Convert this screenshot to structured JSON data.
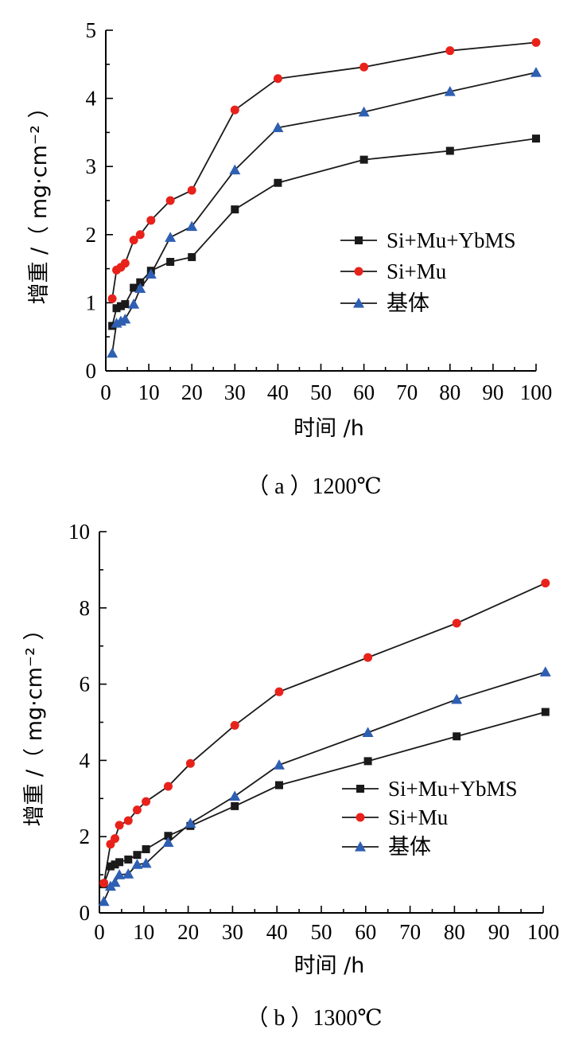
{
  "chart_data": [
    {
      "type": "line",
      "caption": "（ a ）1200℃",
      "xlabel": "时间 /h",
      "ylabel": "增重 /（ mg·cm⁻² ）",
      "xlim": [
        0,
        100
      ],
      "ylim": [
        0,
        5
      ],
      "xticks": [
        0,
        10,
        20,
        30,
        40,
        50,
        60,
        70,
        80,
        90,
        100
      ],
      "yticks": [
        0,
        1,
        2,
        3,
        4,
        5
      ],
      "grid": false,
      "legend_position": "center-right",
      "series": [
        {
          "name": "Si+Mu+YbMS",
          "marker": "square",
          "color": "#1a1a1a",
          "x": [
            1.5,
            2.5,
            3.5,
            4.5,
            6.5,
            8,
            10.5,
            15,
            20,
            30,
            40,
            60,
            80,
            100
          ],
          "y": [
            0.66,
            0.92,
            0.95,
            0.98,
            1.22,
            1.3,
            1.47,
            1.6,
            1.67,
            2.37,
            2.76,
            3.1,
            3.23,
            3.41
          ]
        },
        {
          "name": "Si+Mu",
          "marker": "circle",
          "color": "#e8221b",
          "x": [
            1.5,
            2.5,
            3.5,
            4.5,
            6.5,
            8,
            10.5,
            15,
            20,
            30,
            40,
            60,
            80,
            100
          ],
          "y": [
            1.06,
            1.48,
            1.52,
            1.58,
            1.92,
            2.0,
            2.21,
            2.5,
            2.65,
            3.83,
            4.29,
            4.46,
            4.7,
            4.82
          ]
        },
        {
          "name": "基体",
          "marker": "triangle",
          "color": "#2e5fb2",
          "x": [
            1.5,
            2.5,
            3.5,
            4.5,
            6.5,
            8,
            10.5,
            15,
            20,
            30,
            40,
            60,
            80,
            100
          ],
          "y": [
            0.26,
            0.7,
            0.73,
            0.76,
            0.98,
            1.21,
            1.42,
            1.96,
            2.12,
            2.95,
            3.57,
            3.8,
            4.1,
            4.38
          ]
        }
      ]
    },
    {
      "type": "line",
      "caption": "（ b ）1300℃",
      "xlabel": "时间 /h",
      "ylabel": "增重 /（ mg·cm⁻² ）",
      "xlim": [
        0,
        100
      ],
      "ylim": [
        0,
        10
      ],
      "xticks": [
        0,
        10,
        20,
        30,
        40,
        50,
        60,
        70,
        80,
        90,
        100
      ],
      "yticks": [
        0,
        2,
        4,
        6,
        8,
        10
      ],
      "grid": false,
      "legend_position": "center-right",
      "series": [
        {
          "name": "Si+Mu+YbMS",
          "marker": "square",
          "color": "#1a1a1a",
          "x": [
            1,
            2.5,
            3.5,
            4.5,
            6.5,
            8.5,
            10.5,
            15.5,
            20.5,
            30.5,
            40.5,
            60.5,
            80.5,
            100.5
          ],
          "y": [
            0.75,
            1.22,
            1.27,
            1.33,
            1.4,
            1.52,
            1.67,
            2.02,
            2.28,
            2.8,
            3.35,
            3.98,
            4.63,
            5.27
          ]
        },
        {
          "name": "Si+Mu",
          "marker": "circle",
          "color": "#e8221b",
          "x": [
            1,
            2.5,
            3.5,
            4.5,
            6.5,
            8.5,
            10.5,
            15.5,
            20.5,
            30.5,
            40.5,
            60.5,
            80.5,
            100.5
          ],
          "y": [
            0.78,
            1.8,
            1.95,
            2.3,
            2.42,
            2.7,
            2.92,
            3.32,
            3.92,
            4.92,
            5.8,
            6.7,
            7.6,
            8.65
          ]
        },
        {
          "name": "基体",
          "marker": "triangle",
          "color": "#2e5fb2",
          "x": [
            1,
            2.5,
            3.5,
            4.5,
            6.5,
            8.5,
            10.5,
            15.5,
            20.5,
            30.5,
            40.5,
            60.5,
            80.5,
            100.5
          ],
          "y": [
            0.3,
            0.7,
            0.8,
            1.0,
            1.02,
            1.27,
            1.3,
            1.85,
            2.35,
            3.06,
            3.88,
            4.73,
            5.6,
            6.32
          ]
        }
      ]
    }
  ]
}
